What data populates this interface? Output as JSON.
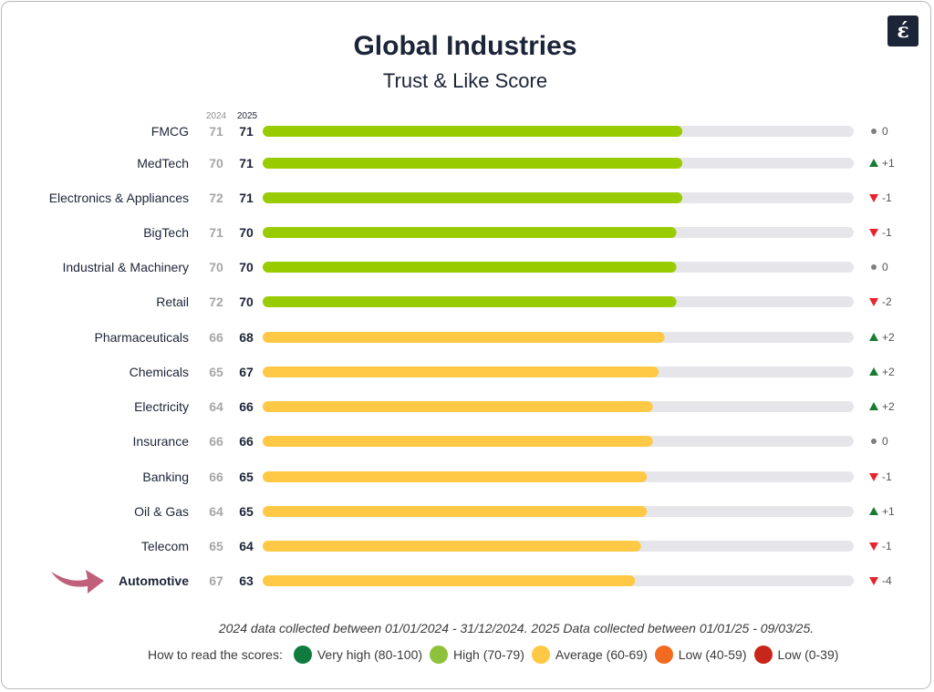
{
  "header": {
    "title": "Global Industries",
    "subtitle": "Trust & Like Score",
    "logo_char": "έ"
  },
  "colors": {
    "high": "#99cc00",
    "average": "#ffc845",
    "track": "#e6e6ea",
    "up": "#1b7a33",
    "down": "#e8232d",
    "flat": "#7f7f7f",
    "label": "#1c2438",
    "prev": "#a6a6a6",
    "arrow": "#c0607a"
  },
  "chart_data": {
    "type": "bar",
    "orientation": "horizontal",
    "title": "Global Industries",
    "subtitle": "Trust & Like Score",
    "xlim": [
      0,
      100
    ],
    "grid": false,
    "column_headers": [
      "2024",
      "2025"
    ],
    "highlighted_category": "Automotive",
    "categories": [
      "FMCG",
      "MedTech",
      "Electronics & Appliances",
      "BigTech",
      "Industrial & Machinery",
      "Retail",
      "Pharmaceuticals",
      "Chemicals",
      "Electricity",
      "Insurance",
      "Banking",
      "Oil & Gas",
      "Telecom",
      "Automotive"
    ],
    "series": [
      {
        "name": "2024",
        "values": [
          71,
          70,
          72,
          71,
          70,
          72,
          66,
          65,
          64,
          66,
          66,
          64,
          65,
          67
        ]
      },
      {
        "name": "2025",
        "values": [
          71,
          71,
          71,
          70,
          70,
          70,
          68,
          67,
          66,
          66,
          65,
          65,
          64,
          63
        ]
      }
    ],
    "change_labels": [
      "0",
      "+1",
      "-1",
      "-1",
      "0",
      "-2",
      "+2",
      "+2",
      "+2",
      "0",
      "-1",
      "+1",
      "-1",
      "-4"
    ],
    "change_direction": [
      "flat",
      "up",
      "down",
      "down",
      "flat",
      "down",
      "up",
      "up",
      "up",
      "flat",
      "down",
      "up",
      "down",
      "down"
    ]
  },
  "footnote": "2024 data collected between 01/01/2024 - 31/12/2024. 2025 Data collected between 01/01/25 - 09/03/25.",
  "legend": {
    "label": "How to read the scores:",
    "items": [
      {
        "text": "Very high (80-100)",
        "color": "#0f7b3e"
      },
      {
        "text": "High (70-79)",
        "color": "#8fc23c"
      },
      {
        "text": "Average (60-69)",
        "color": "#ffc845"
      },
      {
        "text": "Low (40-59)",
        "color": "#f26b21"
      },
      {
        "text": "Low (0-39)",
        "color": "#c8261b"
      }
    ]
  }
}
